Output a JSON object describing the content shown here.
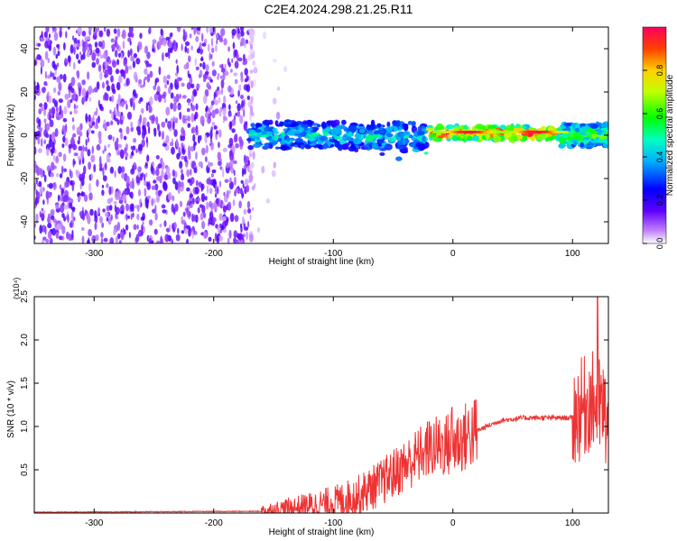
{
  "figure_title": "C2E4.2024.298.21.25.R11",
  "chart_data": [
    {
      "type": "heatmap",
      "xlabel": "Height of straight line (km)",
      "ylabel": "Frequency (Hz)",
      "xlim": [
        -350,
        130
      ],
      "ylim": [
        -50,
        50
      ],
      "x_ticks": [
        -300,
        -200,
        -100,
        0,
        100
      ],
      "y_ticks": [
        -40,
        -20,
        0,
        20,
        40
      ],
      "colorbar": {
        "label": "Normalized spectral amplitude",
        "range": [
          0,
          1
        ],
        "ticks": [
          "0.0",
          "0.2",
          "0.4",
          "0.6",
          "0.8"
        ],
        "tick_values": [
          0.0,
          0.2,
          0.4,
          0.6,
          0.8
        ]
      },
      "regions": [
        {
          "x_range": [
            -350,
            -140
          ],
          "y_range": [
            -50,
            50
          ],
          "amplitude": 0.05,
          "note": "scattered noise"
        },
        {
          "x_range": [
            -170,
            -20
          ],
          "y_center": 0,
          "y_half_width": 6,
          "amplitude": 0.45
        },
        {
          "x_range": [
            -20,
            90
          ],
          "y_center": 1,
          "y_half_width": 3,
          "amplitude": 0.9
        },
        {
          "x_range": [
            90,
            130
          ],
          "y_center": 0,
          "y_half_width": 5,
          "amplitude": 0.6
        }
      ]
    },
    {
      "type": "line",
      "xlabel": "Height of straight line (km)",
      "ylabel": "SNR (10 * v/v)",
      "y_multiplier": "(x10⁴)",
      "xlim": [
        -350,
        130
      ],
      "ylim": [
        0,
        2.5
      ],
      "x_ticks": [
        -300,
        -200,
        -100,
        0,
        100
      ],
      "y_ticks": [
        "0.5",
        "1.0",
        "1.5",
        "2.0",
        "2.5"
      ],
      "y_tick_values": [
        0.5,
        1.0,
        1.5,
        2.0,
        2.5
      ],
      "line_color": "#ee3333",
      "envelope": [
        {
          "x": -350,
          "y": 0.01
        },
        {
          "x": -160,
          "y": 0.02
        },
        {
          "x": -140,
          "y": 0.05
        },
        {
          "x": -100,
          "y": 0.12
        },
        {
          "x": -80,
          "y": 0.2
        },
        {
          "x": -60,
          "y": 0.35
        },
        {
          "x": -40,
          "y": 0.55
        },
        {
          "x": -20,
          "y": 0.75
        },
        {
          "x": 0,
          "y": 0.8
        },
        {
          "x": 20,
          "y": 0.95
        },
        {
          "x": 40,
          "y": 1.07
        },
        {
          "x": 60,
          "y": 1.1
        },
        {
          "x": 90,
          "y": 1.1
        },
        {
          "x": 100,
          "y": 1.1
        },
        {
          "x": 115,
          "y": 1.3
        },
        {
          "x": 125,
          "y": 1.2
        },
        {
          "x": 130,
          "y": 1.0
        }
      ],
      "peaks": [
        {
          "x": -1,
          "y": 1.22
        },
        {
          "x": -25,
          "y": 0.75
        },
        {
          "x": 121,
          "y": 2.5
        }
      ]
    }
  ]
}
